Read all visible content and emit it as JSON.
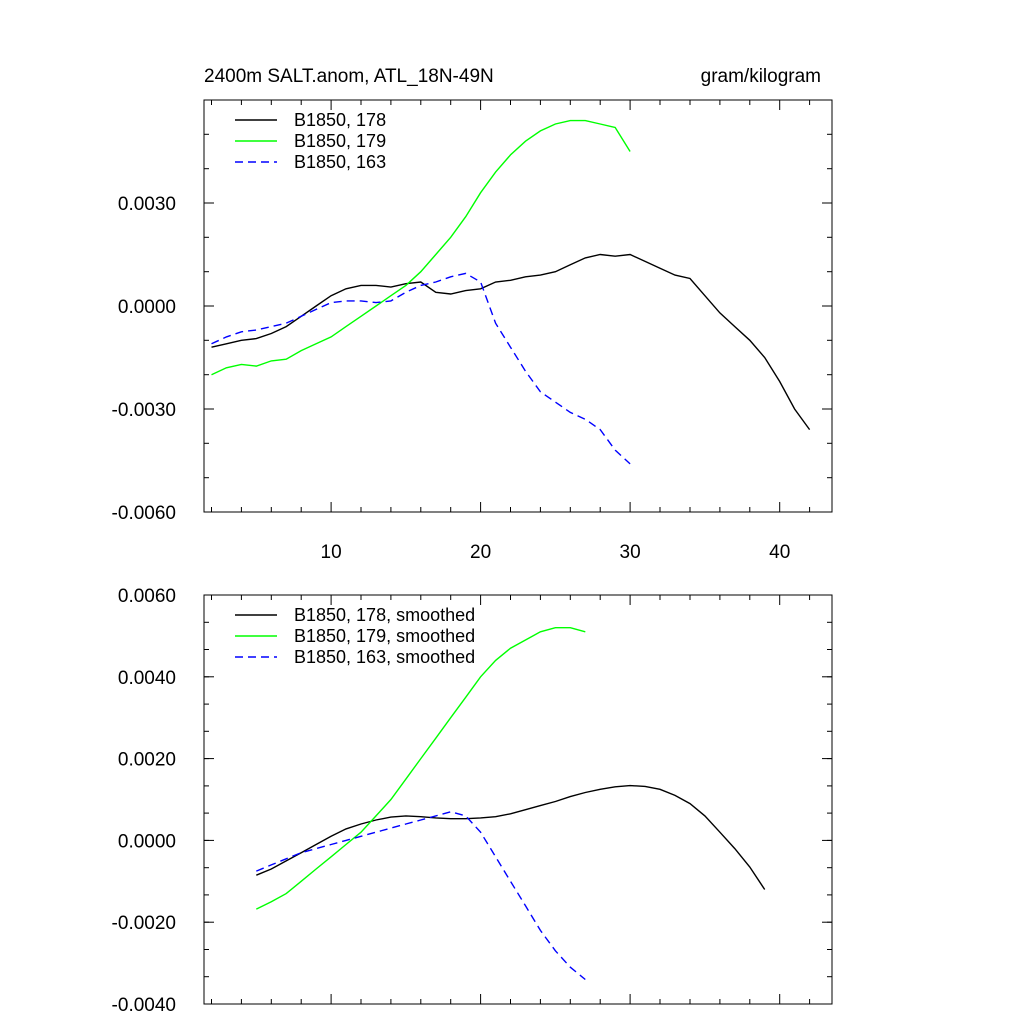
{
  "header": {
    "title": "2400m SALT.anom, ATL_18N-49N",
    "units": "gram/kilogram"
  },
  "chart_data": [
    {
      "type": "line",
      "xlim": [
        1.5,
        43.5
      ],
      "ylim": [
        -0.006,
        0.006
      ],
      "xticks": [
        10,
        20,
        30,
        40
      ],
      "xtick_labels": [
        "10",
        "20",
        "30",
        "40"
      ],
      "yticks": [
        -0.006,
        -0.003,
        0.0,
        0.003
      ],
      "ytick_labels": [
        "-0.0060",
        "-0.0030",
        "0.0000",
        "0.0030"
      ],
      "grid": false,
      "legend": "top-left",
      "series": [
        {
          "name": "B1850, 178",
          "color": "#000000",
          "dash": "solid",
          "x": [
            2,
            3,
            4,
            5,
            6,
            7,
            8,
            9,
            10,
            11,
            12,
            13,
            14,
            15,
            16,
            17,
            18,
            19,
            20,
            21,
            22,
            23,
            24,
            25,
            26,
            27,
            28,
            29,
            30,
            31,
            32,
            33,
            34,
            35,
            36,
            37,
            38,
            39,
            40,
            41,
            42
          ],
          "y": [
            -0.0012,
            -0.0011,
            -0.001,
            -0.00095,
            -0.0008,
            -0.0006,
            -0.0003,
            0.0,
            0.0003,
            0.0005,
            0.0006,
            0.0006,
            0.00055,
            0.00065,
            0.0007,
            0.0004,
            0.00035,
            0.00045,
            0.0005,
            0.0007,
            0.00075,
            0.00085,
            0.0009,
            0.001,
            0.0012,
            0.0014,
            0.0015,
            0.00145,
            0.0015,
            0.0013,
            0.0011,
            0.0009,
            0.0008,
            0.0003,
            -0.0002,
            -0.0006,
            -0.001,
            -0.0015,
            -0.0022,
            -0.003,
            -0.0036
          ]
        },
        {
          "name": "B1850, 179",
          "color": "#00ff00",
          "dash": "solid",
          "x": [
            2,
            3,
            4,
            5,
            6,
            7,
            8,
            9,
            10,
            11,
            12,
            13,
            14,
            15,
            16,
            17,
            18,
            19,
            20,
            21,
            22,
            23,
            24,
            25,
            26,
            27,
            28,
            29,
            30
          ],
          "y": [
            -0.002,
            -0.0018,
            -0.0017,
            -0.00175,
            -0.0016,
            -0.00155,
            -0.0013,
            -0.0011,
            -0.0009,
            -0.0006,
            -0.0003,
            0.0,
            0.0003,
            0.0006,
            0.001,
            0.0015,
            0.002,
            0.0026,
            0.0033,
            0.0039,
            0.0044,
            0.0048,
            0.0051,
            0.0053,
            0.0054,
            0.0054,
            0.0053,
            0.0052,
            0.0045
          ]
        },
        {
          "name": "B1850, 163",
          "color": "#0000ff",
          "dash": "dashed",
          "x": [
            2,
            3,
            4,
            5,
            6,
            7,
            8,
            9,
            10,
            11,
            12,
            13,
            14,
            15,
            16,
            17,
            18,
            19,
            20,
            21,
            22,
            23,
            24,
            25,
            26,
            27,
            28,
            29,
            30
          ],
          "y": [
            -0.0011,
            -0.0009,
            -0.00075,
            -0.0007,
            -0.0006,
            -0.0005,
            -0.0003,
            -0.0001,
            0.0001,
            0.00015,
            0.00015,
            0.0001,
            0.00015,
            0.0004,
            0.0006,
            0.0007,
            0.00085,
            0.00095,
            0.0007,
            -0.0005,
            -0.0012,
            -0.0019,
            -0.0025,
            -0.0028,
            -0.0031,
            -0.0033,
            -0.0036,
            -0.0042,
            -0.0046
          ]
        }
      ]
    },
    {
      "type": "line",
      "xlim": [
        1.5,
        43.5
      ],
      "ylim": [
        -0.004,
        0.006
      ],
      "xticks": [
        10,
        20,
        30,
        40
      ],
      "xtick_labels": [],
      "yticks": [
        -0.004,
        -0.002,
        0.0,
        0.002,
        0.004,
        0.006
      ],
      "ytick_labels": [
        "-0.0040",
        "-0.0020",
        "0.0000",
        "0.0020",
        "0.0040",
        "0.0060"
      ],
      "grid": false,
      "legend": "top-left",
      "series": [
        {
          "name": "B1850, 178, smoothed",
          "color": "#000000",
          "dash": "solid",
          "x": [
            5,
            6,
            7,
            8,
            9,
            10,
            11,
            12,
            13,
            14,
            15,
            16,
            17,
            18,
            19,
            20,
            21,
            22,
            23,
            24,
            25,
            26,
            27,
            28,
            29,
            30,
            31,
            32,
            33,
            34,
            35,
            36,
            37,
            38,
            39
          ],
          "y": [
            -0.00085,
            -0.0007,
            -0.0005,
            -0.0003,
            -0.0001,
            0.0001,
            0.00028,
            0.0004,
            0.0005,
            0.00057,
            0.0006,
            0.00058,
            0.00055,
            0.00053,
            0.00053,
            0.00055,
            0.00058,
            0.00065,
            0.00075,
            0.00085,
            0.00095,
            0.00107,
            0.00117,
            0.00125,
            0.00131,
            0.00134,
            0.00132,
            0.00125,
            0.0011,
            0.0009,
            0.0006,
            0.0002,
            -0.0002,
            -0.00065,
            -0.0012
          ]
        },
        {
          "name": "B1850, 179, smoothed",
          "color": "#00ff00",
          "dash": "solid",
          "x": [
            5,
            6,
            7,
            8,
            9,
            10,
            11,
            12,
            13,
            14,
            15,
            16,
            17,
            18,
            19,
            20,
            21,
            22,
            23,
            24,
            25,
            26,
            27
          ],
          "y": [
            -0.00168,
            -0.0015,
            -0.0013,
            -0.001,
            -0.0007,
            -0.0004,
            -0.0001,
            0.0002,
            0.0006,
            0.001,
            0.0015,
            0.002,
            0.0025,
            0.003,
            0.0035,
            0.004,
            0.0044,
            0.0047,
            0.0049,
            0.0051,
            0.0052,
            0.0052,
            0.0051
          ]
        },
        {
          "name": "B1850, 163, smoothed",
          "color": "#0000ff",
          "dash": "dashed",
          "x": [
            5,
            6,
            7,
            8,
            9,
            10,
            11,
            12,
            13,
            14,
            15,
            16,
            17,
            18,
            19,
            20,
            21,
            22,
            23,
            24,
            25,
            26,
            27
          ],
          "y": [
            -0.00075,
            -0.0006,
            -0.00045,
            -0.0003,
            -0.0002,
            -0.0001,
            0.0,
            0.0001,
            0.0002,
            0.0003,
            0.0004,
            0.0005,
            0.0006,
            0.0007,
            0.0006,
            0.0002,
            -0.0004,
            -0.001,
            -0.0016,
            -0.0022,
            -0.0027,
            -0.0031,
            -0.0034
          ]
        }
      ]
    }
  ]
}
